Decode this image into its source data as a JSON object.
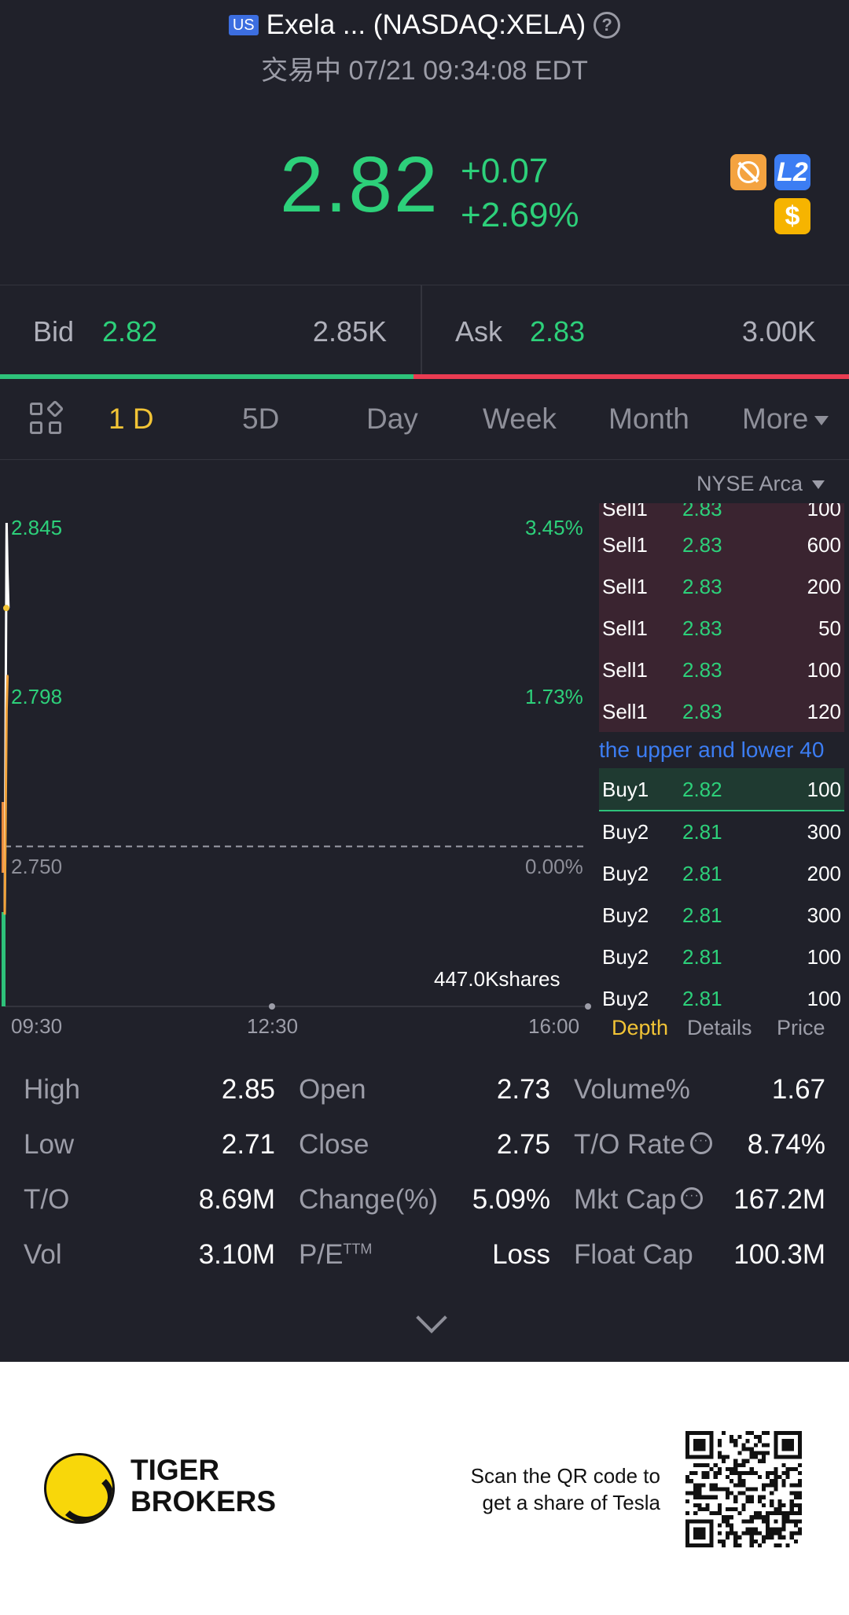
{
  "header": {
    "market_badge": "US",
    "title": "Exela ... (NASDAQ:XELA)",
    "status": "交易中 07/21 09:34:08 EDT"
  },
  "quote": {
    "price": "2.82",
    "change": "+0.07",
    "change_pct": "+2.69%",
    "badge_l2": "L2",
    "badge_dollar": "$"
  },
  "bidask": {
    "bid_label": "Bid",
    "bid_price": "2.82",
    "bid_size": "2.85K",
    "ask_label": "Ask",
    "ask_price": "2.83",
    "ask_size": "3.00K",
    "bid_ratio": 0.487
  },
  "tabs": [
    "1 D",
    "5D",
    "Day",
    "Week",
    "Month",
    "More"
  ],
  "active_tab": "1 D",
  "exchange": "NYSE Arca",
  "chart": {
    "y_labels": [
      "2.845",
      "2.798",
      "2.750"
    ],
    "pct_labels": [
      "3.45%",
      "1.73%",
      "0.00%"
    ],
    "time_labels": [
      "09:30",
      "12:30",
      "16:00"
    ],
    "volume_note": "447.0Kshares"
  },
  "chart_data": {
    "type": "line",
    "title": "",
    "xlabel": "",
    "ylabel": "",
    "x": [
      "09:30",
      "09:31",
      "09:32",
      "09:33",
      "09:34"
    ],
    "series": [
      {
        "values": [
          2.73,
          2.79,
          2.845,
          2.83,
          2.82
        ]
      },
      {
        "values": [
          2.73,
          2.76,
          2.79,
          2.8,
          2.8
        ]
      }
    ],
    "ylim": [
      2.703,
      2.845
    ],
    "reference": 2.75,
    "x_ticks": [
      "09:30",
      "12:30",
      "16:00"
    ],
    "pct_ticks": [
      "3.45%",
      "1.73%",
      "0.00%"
    ]
  },
  "book": {
    "marquee": "the upper and lower 40",
    "sell": [
      {
        "side": "Sell1",
        "price": "2.83",
        "qty": "100"
      },
      {
        "side": "Sell1",
        "price": "2.83",
        "qty": "600"
      },
      {
        "side": "Sell1",
        "price": "2.83",
        "qty": "200"
      },
      {
        "side": "Sell1",
        "price": "2.83",
        "qty": "50"
      },
      {
        "side": "Sell1",
        "price": "2.83",
        "qty": "100"
      },
      {
        "side": "Sell1",
        "price": "2.83",
        "qty": "120"
      }
    ],
    "buy": [
      {
        "side": "Buy1",
        "price": "2.82",
        "qty": "100"
      },
      {
        "side": "Buy2",
        "price": "2.81",
        "qty": "300"
      },
      {
        "side": "Buy2",
        "price": "2.81",
        "qty": "200"
      },
      {
        "side": "Buy2",
        "price": "2.81",
        "qty": "300"
      },
      {
        "side": "Buy2",
        "price": "2.81",
        "qty": "100"
      },
      {
        "side": "Buy2",
        "price": "2.81",
        "qty": "100"
      }
    ],
    "tabs": [
      "Depth",
      "Details",
      "Price"
    ]
  },
  "stats": [
    {
      "label": "High",
      "value": "2.85"
    },
    {
      "label": "Open",
      "value": "2.73"
    },
    {
      "label": "Volume%",
      "value": "1.67"
    },
    {
      "label": "Low",
      "value": "2.71"
    },
    {
      "label": "Close",
      "value": "2.75"
    },
    {
      "label": "T/O Rate",
      "value": "8.74%"
    },
    {
      "label": "T/O",
      "value": "8.69M"
    },
    {
      "label": "Change(%)",
      "value": "5.09%"
    },
    {
      "label": "Mkt Cap",
      "value": "167.2M"
    },
    {
      "label": "Vol",
      "value": "3.10M"
    },
    {
      "label": "P/E",
      "value": "Loss"
    },
    {
      "label": "Float Cap",
      "value": "100.3M"
    }
  ],
  "pe_sup": "TTM",
  "footer": {
    "brand_line1": "TIGER",
    "brand_line2": "BROKERS",
    "scan_line1": "Scan the QR code to",
    "scan_line2": "get a share of Tesla"
  },
  "colors": {
    "up": "#2dd07a",
    "down": "#ea3c52",
    "accent": "#f2c436",
    "background": "#20212a"
  }
}
